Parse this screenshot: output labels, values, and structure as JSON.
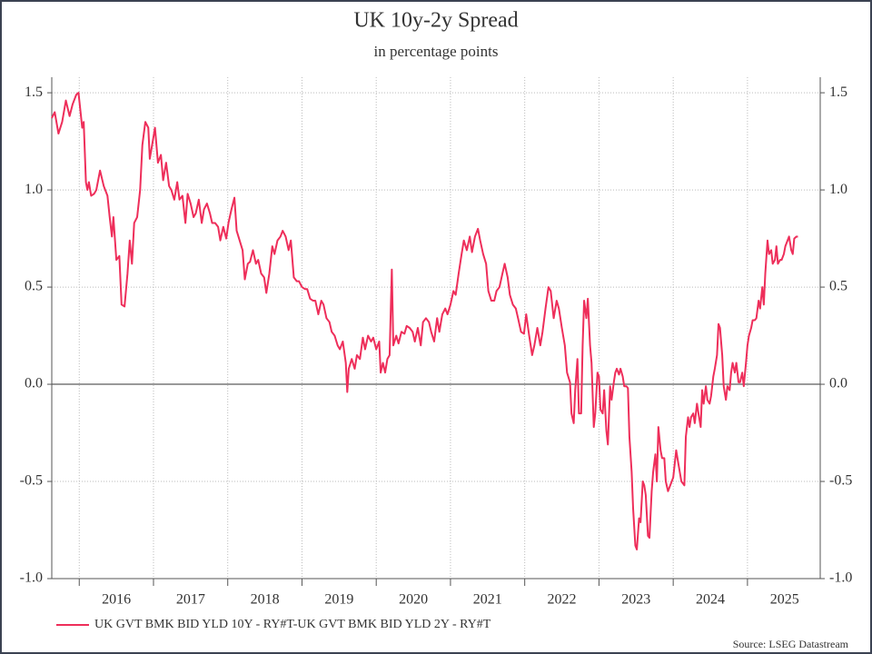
{
  "chart_data": {
    "type": "line",
    "title": "UK 10y-2y Spread",
    "subtitle": "in percentage points",
    "source": "Source: LSEG Datastream",
    "x": [
      2015.63,
      2015.67,
      2015.72,
      2015.77,
      2015.82,
      2015.87,
      2015.91,
      2015.96,
      2015.99,
      2016.04,
      2016.06,
      2016.09,
      2016.11,
      2016.13,
      2016.16,
      2016.2,
      2016.23,
      2016.28,
      2016.33,
      2016.38,
      2016.41,
      2016.44,
      2016.46,
      2016.5,
      2016.54,
      2016.57,
      2016.61,
      2016.65,
      2016.68,
      2016.71,
      2016.74,
      2016.78,
      2016.82,
      2016.85,
      2016.89,
      2016.93,
      2016.95,
      2016.99,
      2017.02,
      2017.06,
      2017.1,
      2017.13,
      2017.17,
      2017.21,
      2017.24,
      2017.28,
      2017.32,
      2017.35,
      2017.39,
      2017.43,
      2017.46,
      2017.5,
      2017.54,
      2017.57,
      2017.61,
      2017.65,
      2017.68,
      2017.72,
      2017.76,
      2017.79,
      2017.83,
      2017.87,
      2017.9,
      2017.94,
      2017.98,
      2018.01,
      2018.05,
      2018.09,
      2018.12,
      2018.16,
      2018.2,
      2018.23,
      2018.27,
      2018.3,
      2018.34,
      2018.38,
      2018.41,
      2018.45,
      2018.49,
      2018.52,
      2018.56,
      2018.6,
      2018.63,
      2018.67,
      2018.71,
      2018.74,
      2018.78,
      2018.82,
      2018.85,
      2018.89,
      2018.93,
      2018.96,
      2019.0,
      2019.04,
      2019.07,
      2019.11,
      2019.15,
      2019.18,
      2019.22,
      2019.26,
      2019.29,
      2019.33,
      2019.37,
      2019.4,
      2019.44,
      2019.48,
      2019.51,
      2019.55,
      2019.59,
      2019.61,
      2019.63,
      2019.67,
      2019.71,
      2019.74,
      2019.78,
      2019.82,
      2019.85,
      2019.89,
      2019.93,
      2019.96,
      2020.0,
      2020.04,
      2020.06,
      2020.09,
      2020.12,
      2020.15,
      2020.18,
      2020.21,
      2020.23,
      2020.27,
      2020.3,
      2020.34,
      2020.38,
      2020.41,
      2020.45,
      2020.49,
      2020.52,
      2020.56,
      2020.6,
      2020.63,
      2020.67,
      2020.71,
      2020.74,
      2020.78,
      2020.82,
      2020.85,
      2020.89,
      2020.93,
      2020.96,
      2021.0,
      2021.04,
      2021.07,
      2021.11,
      2021.15,
      2021.18,
      2021.22,
      2021.26,
      2021.29,
      2021.33,
      2021.37,
      2021.4,
      2021.44,
      2021.48,
      2021.51,
      2021.55,
      2021.59,
      2021.62,
      2021.66,
      2021.7,
      2021.73,
      2021.77,
      2021.8,
      2021.84,
      2021.88,
      2021.91,
      2021.95,
      2021.99,
      2022.02,
      2022.06,
      2022.1,
      2022.13,
      2022.17,
      2022.21,
      2022.24,
      2022.28,
      2022.32,
      2022.35,
      2022.39,
      2022.43,
      2022.46,
      2022.5,
      2022.54,
      2022.57,
      2022.61,
      2022.63,
      2022.66,
      2022.68,
      2022.71,
      2022.73,
      2022.76,
      2022.78,
      2022.8,
      2022.83,
      2022.85,
      2022.88,
      2022.9,
      2022.93,
      2022.95,
      2022.98,
      2023.0,
      2023.02,
      2023.05,
      2023.07,
      2023.1,
      2023.12,
      2023.15,
      2023.17,
      2023.2,
      2023.22,
      2023.24,
      2023.27,
      2023.29,
      2023.32,
      2023.34,
      2023.37,
      2023.39,
      2023.41,
      2023.44,
      2023.46,
      2023.49,
      2023.51,
      2023.54,
      2023.56,
      2023.59,
      2023.61,
      2023.63,
      2023.66,
      2023.68,
      2023.71,
      2023.73,
      2023.76,
      2023.78,
      2023.8,
      2023.83,
      2023.85,
      2023.88,
      2023.9,
      2023.93,
      2023.96,
      2024.0,
      2024.04,
      2024.07,
      2024.11,
      2024.15,
      2024.17,
      2024.2,
      2024.22,
      2024.24,
      2024.27,
      2024.29,
      2024.32,
      2024.34,
      2024.37,
      2024.39,
      2024.41,
      2024.44,
      2024.46,
      2024.49,
      2024.51,
      2024.54,
      2024.56,
      2024.59,
      2024.61,
      2024.63,
      2024.66,
      2024.68,
      2024.71,
      2024.73,
      2024.76,
      2024.78,
      2024.8,
      2024.83,
      2024.85,
      2024.88,
      2024.9,
      2024.93,
      2024.95,
      2024.98,
      2025.0,
      2025.02,
      2025.05,
      2025.07,
      2025.1,
      2025.12,
      2025.15,
      2025.17,
      2025.2,
      2025.22,
      2025.24,
      2025.27,
      2025.29,
      2025.32,
      2025.34,
      2025.37,
      2025.39,
      2025.41,
      2025.44,
      2025.46,
      2025.49,
      2025.51,
      2025.54,
      2025.56,
      2025.59,
      2025.61,
      2025.63,
      2025.66,
      2025.68
    ],
    "series": [
      {
        "name": "UK GVT BMK BID YLD 10Y - RY#T-UK GVT BMK BID YLD 2Y - RY#T",
        "color": "#ee2e5a",
        "values": [
          1.37,
          1.4,
          1.29,
          1.35,
          1.46,
          1.38,
          1.44,
          1.49,
          1.5,
          1.32,
          1.35,
          1.04,
          1.0,
          1.04,
          0.97,
          0.98,
          1.0,
          1.1,
          1.02,
          0.97,
          0.86,
          0.76,
          0.86,
          0.64,
          0.66,
          0.41,
          0.4,
          0.57,
          0.74,
          0.62,
          0.83,
          0.86,
          1.0,
          1.23,
          1.35,
          1.32,
          1.16,
          1.25,
          1.32,
          1.14,
          1.18,
          1.05,
          1.14,
          1.02,
          1.0,
          0.95,
          1.04,
          0.95,
          0.97,
          0.83,
          0.98,
          0.93,
          0.86,
          0.88,
          0.95,
          0.83,
          0.9,
          0.93,
          0.88,
          0.83,
          0.83,
          0.81,
          0.74,
          0.81,
          0.75,
          0.83,
          0.9,
          0.96,
          0.79,
          0.74,
          0.69,
          0.54,
          0.62,
          0.63,
          0.69,
          0.62,
          0.64,
          0.57,
          0.55,
          0.47,
          0.57,
          0.71,
          0.67,
          0.74,
          0.76,
          0.79,
          0.76,
          0.69,
          0.74,
          0.55,
          0.53,
          0.53,
          0.5,
          0.49,
          0.49,
          0.44,
          0.43,
          0.43,
          0.36,
          0.43,
          0.41,
          0.34,
          0.32,
          0.27,
          0.25,
          0.2,
          0.18,
          0.22,
          0.11,
          -0.04,
          0.08,
          0.13,
          0.08,
          0.15,
          0.13,
          0.24,
          0.18,
          0.25,
          0.22,
          0.24,
          0.18,
          0.22,
          0.06,
          0.11,
          0.06,
          0.13,
          0.15,
          0.59,
          0.2,
          0.25,
          0.21,
          0.27,
          0.26,
          0.3,
          0.29,
          0.27,
          0.22,
          0.29,
          0.2,
          0.32,
          0.34,
          0.32,
          0.27,
          0.22,
          0.34,
          0.27,
          0.36,
          0.39,
          0.36,
          0.41,
          0.48,
          0.46,
          0.57,
          0.67,
          0.74,
          0.69,
          0.76,
          0.68,
          0.76,
          0.8,
          0.74,
          0.67,
          0.62,
          0.48,
          0.43,
          0.43,
          0.48,
          0.5,
          0.57,
          0.62,
          0.55,
          0.46,
          0.41,
          0.39,
          0.34,
          0.27,
          0.26,
          0.36,
          0.25,
          0.15,
          0.2,
          0.29,
          0.2,
          0.27,
          0.39,
          0.5,
          0.48,
          0.34,
          0.43,
          0.39,
          0.29,
          0.2,
          0.06,
          0.01,
          -0.15,
          -0.2,
          -0.03,
          0.13,
          -0.15,
          -0.15,
          0.2,
          0.43,
          0.34,
          0.44,
          0.2,
          0.11,
          -0.22,
          -0.15,
          0.06,
          0.04,
          -0.13,
          -0.15,
          -0.03,
          -0.24,
          -0.31,
          -0.01,
          -0.08,
          0.01,
          0.06,
          0.08,
          0.05,
          0.08,
          0.04,
          -0.01,
          -0.01,
          -0.02,
          -0.27,
          -0.45,
          -0.64,
          -0.83,
          -0.85,
          -0.69,
          -0.71,
          -0.5,
          -0.52,
          -0.57,
          -0.78,
          -0.79,
          -0.55,
          -0.45,
          -0.36,
          -0.5,
          -0.22,
          -0.34,
          -0.38,
          -0.38,
          -0.5,
          -0.55,
          -0.52,
          -0.48,
          -0.34,
          -0.41,
          -0.5,
          -0.52,
          -0.27,
          -0.17,
          -0.22,
          -0.17,
          -0.15,
          -0.2,
          -0.1,
          -0.15,
          -0.22,
          -0.03,
          -0.1,
          -0.01,
          -0.08,
          -0.1,
          -0.06,
          0.04,
          0.08,
          0.15,
          0.31,
          0.29,
          0.15,
          -0.01,
          -0.08,
          -0.01,
          -0.03,
          0.06,
          0.11,
          0.06,
          0.11,
          0.01,
          0.01,
          0.06,
          -0.01,
          0.11,
          0.2,
          0.25,
          0.29,
          0.33,
          0.33,
          0.34,
          0.43,
          0.39,
          0.5,
          0.41,
          0.57,
          0.74,
          0.67,
          0.69,
          0.62,
          0.64,
          0.71,
          0.62,
          0.64,
          0.64,
          0.67,
          0.71,
          0.74,
          0.76,
          0.69,
          0.67,
          0.75,
          0.76,
          0.76
        ]
      }
    ],
    "xlim": [
      2015.63,
      2025.98
    ],
    "xticks": [
      2016,
      2017,
      2018,
      2019,
      2020,
      2021,
      2022,
      2023,
      2024,
      2025
    ],
    "ylim": [
      -1.0,
      1.58
    ],
    "yticks": [
      {
        "value": -1.0,
        "label": "-1.0"
      },
      -0.5,
      {
        "value": 0.0,
        "label": "0.0"
      },
      0.5,
      {
        "value": 1.0,
        "label": "1.0"
      },
      1.5
    ],
    "grid": true
  }
}
